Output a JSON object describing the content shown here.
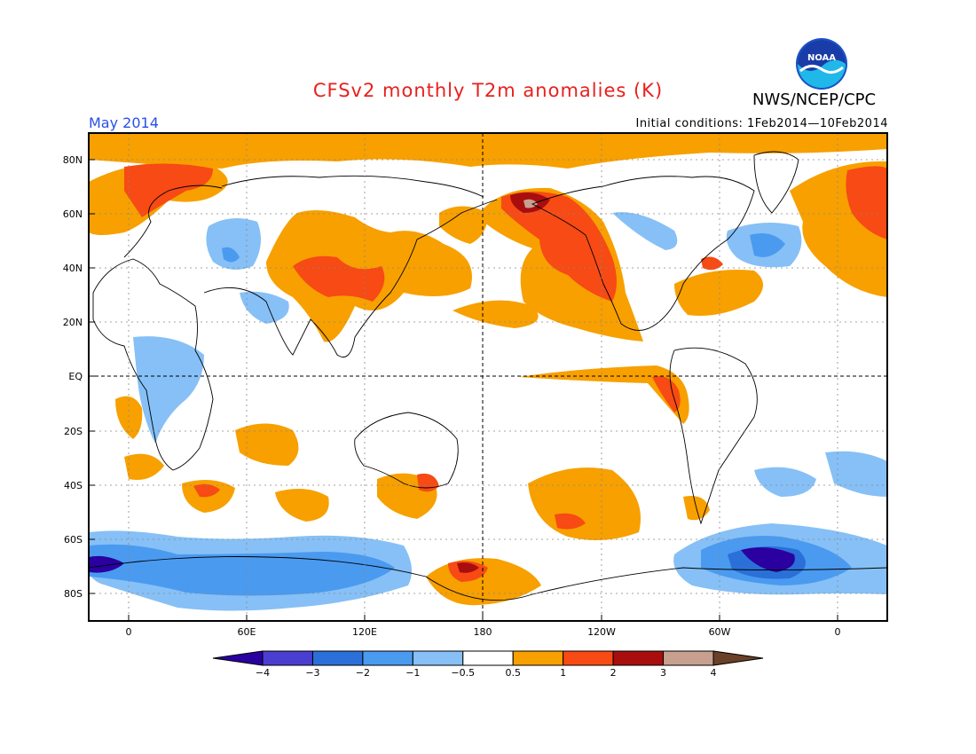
{
  "header": {
    "title": "CFSv2 monthly T2m anomalies (K)",
    "agency": "NWS/NCEP/CPC",
    "logo_text": "NOAA",
    "month": "May 2014",
    "initial_conditions": "Initial conditions: 1Feb2014—10Feb2014"
  },
  "axes": {
    "lat_labels": [
      "80N",
      "60N",
      "40N",
      "20N",
      "EQ",
      "20S",
      "40S",
      "60S",
      "80S"
    ],
    "lon_labels": [
      "0",
      "60E",
      "120E",
      "180",
      "120W",
      "60W",
      "0"
    ]
  },
  "colorbar": {
    "ticks": [
      "−4",
      "−3",
      "−2",
      "−1",
      "−0.5",
      "0.5",
      "1",
      "2",
      "3",
      "4"
    ],
    "colors": [
      "#2a00a0",
      "#4a3ed0",
      "#2a70d8",
      "#4a9af0",
      "#86c0f6",
      "#ffffff",
      "#f7a000",
      "#f74a14",
      "#a80e0e",
      "#c8a090",
      "#6a4028"
    ]
  },
  "colors": {
    "title": "#e8201e",
    "month": "#2850e6",
    "warm1": "#f7a000",
    "warm2": "#f74a14",
    "warm3": "#a80e0e",
    "cool1": "#86c0f6",
    "cool2": "#4a9af0",
    "cool3": "#2a70d8",
    "cool4": "#2a00a0"
  }
}
